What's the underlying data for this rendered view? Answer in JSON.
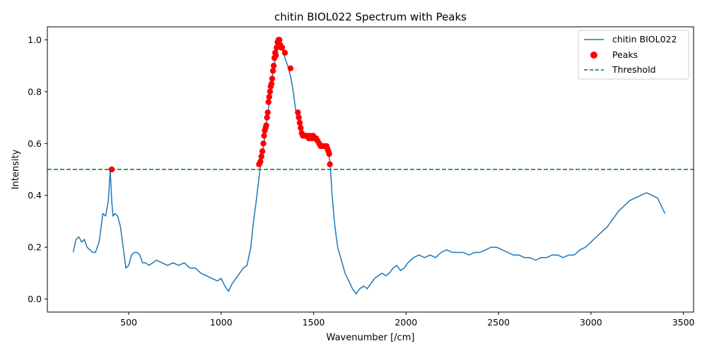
{
  "chart_data": {
    "type": "line",
    "title": "chitin BIOL022 Spectrum with Peaks",
    "xlabel": "Wavenumber [/cm]",
    "ylabel": "Intensity",
    "xlim": [
      60,
      3555
    ],
    "ylim": [
      -0.05,
      1.05
    ],
    "xticks": [
      500,
      1000,
      1500,
      2000,
      2500,
      3000,
      3500
    ],
    "yticks": [
      0.0,
      0.2,
      0.4,
      0.6,
      0.8,
      1.0
    ],
    "xtick_labels": [
      "500",
      "1000",
      "1500",
      "2000",
      "2500",
      "3000",
      "3500"
    ],
    "ytick_labels": [
      "0.0",
      "0.2",
      "0.4",
      "0.6",
      "0.8",
      "1.0"
    ],
    "grid": false,
    "legend_position": "top-right",
    "legend": [
      {
        "label": "chitin BIOL022",
        "kind": "line",
        "color": "#1f77b4"
      },
      {
        "label": "Peaks",
        "kind": "marker",
        "color": "#ff0000"
      },
      {
        "label": "Threshold",
        "kind": "dashed",
        "color": "#008000"
      }
    ],
    "threshold": 0.5,
    "series": [
      {
        "name": "chitin BIOL022",
        "color": "#1f77b4",
        "x": [
          200,
          215,
          230,
          245,
          260,
          275,
          290,
          305,
          320,
          340,
          360,
          375,
          390,
          400,
          408,
          415,
          425,
          440,
          455,
          470,
          485,
          500,
          515,
          530,
          545,
          560,
          575,
          590,
          610,
          630,
          650,
          680,
          710,
          740,
          770,
          800,
          830,
          860,
          890,
          920,
          950,
          980,
          1000,
          1020,
          1040,
          1060,
          1080,
          1100,
          1120,
          1140,
          1160,
          1175,
          1190,
          1205,
          1215,
          1225,
          1235,
          1245,
          1255,
          1265,
          1275,
          1285,
          1295,
          1305,
          1315,
          1322,
          1330,
          1345,
          1360,
          1375,
          1390,
          1405,
          1420,
          1435,
          1450,
          1465,
          1480,
          1495,
          1510,
          1525,
          1540,
          1555,
          1570,
          1580,
          1590,
          1600,
          1615,
          1630,
          1650,
          1670,
          1690,
          1710,
          1730,
          1750,
          1770,
          1790,
          1810,
          1830,
          1850,
          1870,
          1890,
          1910,
          1930,
          1950,
          1970,
          1990,
          2010,
          2040,
          2070,
          2100,
          2130,
          2160,
          2190,
          2220,
          2250,
          2280,
          2310,
          2340,
          2370,
          2400,
          2430,
          2460,
          2490,
          2520,
          2550,
          2580,
          2610,
          2640,
          2670,
          2700,
          2730,
          2760,
          2790,
          2820,
          2850,
          2880,
          2910,
          2940,
          2970,
          3000,
          3030,
          3060,
          3090,
          3120,
          3150,
          3180,
          3210,
          3240,
          3270,
          3300,
          3330,
          3360,
          3380,
          3400
        ],
        "values": [
          0.18,
          0.23,
          0.24,
          0.22,
          0.23,
          0.2,
          0.19,
          0.18,
          0.18,
          0.22,
          0.33,
          0.32,
          0.38,
          0.5,
          0.38,
          0.32,
          0.33,
          0.32,
          0.28,
          0.2,
          0.12,
          0.13,
          0.17,
          0.18,
          0.18,
          0.17,
          0.14,
          0.14,
          0.13,
          0.14,
          0.15,
          0.14,
          0.13,
          0.14,
          0.13,
          0.14,
          0.12,
          0.12,
          0.1,
          0.09,
          0.08,
          0.07,
          0.08,
          0.05,
          0.03,
          0.06,
          0.08,
          0.1,
          0.12,
          0.13,
          0.2,
          0.3,
          0.38,
          0.47,
          0.53,
          0.57,
          0.62,
          0.68,
          0.73,
          0.79,
          0.85,
          0.9,
          0.93,
          0.96,
          1.0,
          0.99,
          0.97,
          0.93,
          0.9,
          0.86,
          0.8,
          0.72,
          0.68,
          0.64,
          0.63,
          0.63,
          0.62,
          0.62,
          0.61,
          0.6,
          0.59,
          0.59,
          0.58,
          0.57,
          0.52,
          0.4,
          0.28,
          0.2,
          0.15,
          0.1,
          0.07,
          0.04,
          0.02,
          0.04,
          0.05,
          0.04,
          0.06,
          0.08,
          0.09,
          0.1,
          0.09,
          0.1,
          0.12,
          0.13,
          0.11,
          0.12,
          0.14,
          0.16,
          0.17,
          0.16,
          0.17,
          0.16,
          0.18,
          0.19,
          0.18,
          0.18,
          0.18,
          0.17,
          0.18,
          0.18,
          0.19,
          0.2,
          0.2,
          0.19,
          0.18,
          0.17,
          0.17,
          0.16,
          0.16,
          0.15,
          0.16,
          0.16,
          0.17,
          0.17,
          0.16,
          0.17,
          0.17,
          0.19,
          0.2,
          0.22,
          0.24,
          0.26,
          0.28,
          0.31,
          0.34,
          0.36,
          0.38,
          0.39,
          0.4,
          0.41,
          0.4,
          0.39,
          0.36,
          0.33
        ]
      },
      {
        "name": "Peaks",
        "color": "#ff0000",
        "x": [
          408,
          1205,
          1212,
          1218,
          1223,
          1228,
          1232,
          1236,
          1240,
          1244,
          1248,
          1252,
          1256,
          1260,
          1264,
          1268,
          1272,
          1276,
          1280,
          1284,
          1288,
          1292,
          1296,
          1300,
          1305,
          1310,
          1315,
          1320,
          1325,
          1330,
          1345,
          1375,
          1415,
          1420,
          1425,
          1430,
          1436,
          1442,
          1450,
          1458,
          1466,
          1474,
          1482,
          1490,
          1498,
          1506,
          1514,
          1522,
          1530,
          1538,
          1546,
          1554,
          1562,
          1570,
          1575,
          1580,
          1584,
          1588
        ],
        "values": [
          0.5,
          0.52,
          0.53,
          0.55,
          0.57,
          0.6,
          0.63,
          0.65,
          0.66,
          0.67,
          0.7,
          0.72,
          0.76,
          0.78,
          0.8,
          0.82,
          0.83,
          0.85,
          0.88,
          0.9,
          0.93,
          0.95,
          0.94,
          0.97,
          0.99,
          1.0,
          1.0,
          0.98,
          0.97,
          0.97,
          0.95,
          0.89,
          0.72,
          0.7,
          0.68,
          0.66,
          0.64,
          0.63,
          0.63,
          0.63,
          0.63,
          0.62,
          0.63,
          0.62,
          0.63,
          0.62,
          0.62,
          0.61,
          0.6,
          0.59,
          0.59,
          0.59,
          0.59,
          0.59,
          0.58,
          0.57,
          0.56,
          0.52
        ]
      }
    ]
  }
}
